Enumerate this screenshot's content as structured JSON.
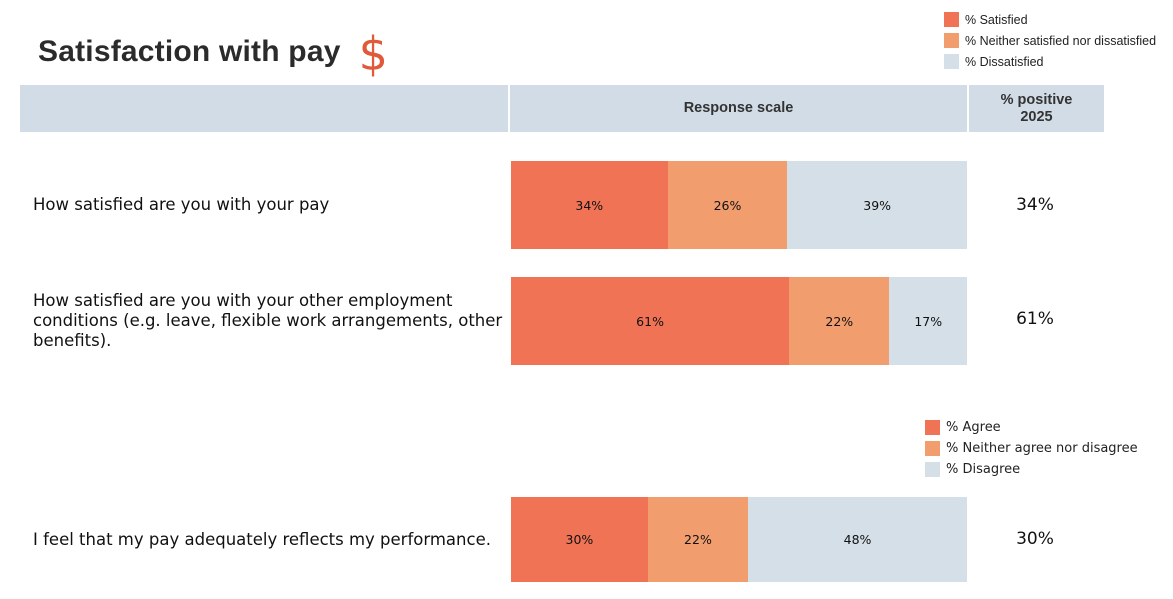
{
  "title": "Satisfaction with pay",
  "title_icon": "$",
  "colors": {
    "positive": "#f07356",
    "neutral": "#f29d6e",
    "negative": "#d5dfe7",
    "header_bg": "#d1dce6",
    "title_icon": "#e05a3a"
  },
  "legend_top": [
    {
      "label": "% Satisfied",
      "color": "#f07356"
    },
    {
      "label": "% Neither satisfied nor dissatisfied",
      "color": "#f29d6e"
    },
    {
      "label": "% Dissatisfied",
      "color": "#d5dfe7"
    }
  ],
  "legend_bottom": [
    {
      "label": "% Agree",
      "color": "#f07356"
    },
    {
      "label": "% Neither agree nor disagree",
      "color": "#f29d6e"
    },
    {
      "label": "% Disagree",
      "color": "#d5dfe7"
    }
  ],
  "header": {
    "response_scale": "Response scale",
    "positive_line1": "% positive",
    "positive_line2": "2025"
  },
  "chart_data": {
    "type": "bar",
    "stacked": true,
    "orientation": "horizontal",
    "categories": [
      "How satisfied are you with your pay",
      "How satisfied are you with your other employment conditions (e.g. leave, flexible work arrangements, other benefits).",
      "I feel that my pay adequately reflects my performance."
    ],
    "series": [
      {
        "values": [
          34,
          61,
          30
        ],
        "labels": [
          "34%",
          "61%",
          "30%"
        ]
      },
      {
        "values": [
          26,
          22,
          22
        ],
        "labels": [
          "26%",
          "22%",
          "22%"
        ]
      },
      {
        "values": [
          39,
          17,
          48
        ],
        "labels": [
          "39%",
          "17%",
          "48%"
        ]
      }
    ],
    "positive_2025": [
      "34%",
      "61%",
      "30%"
    ]
  }
}
